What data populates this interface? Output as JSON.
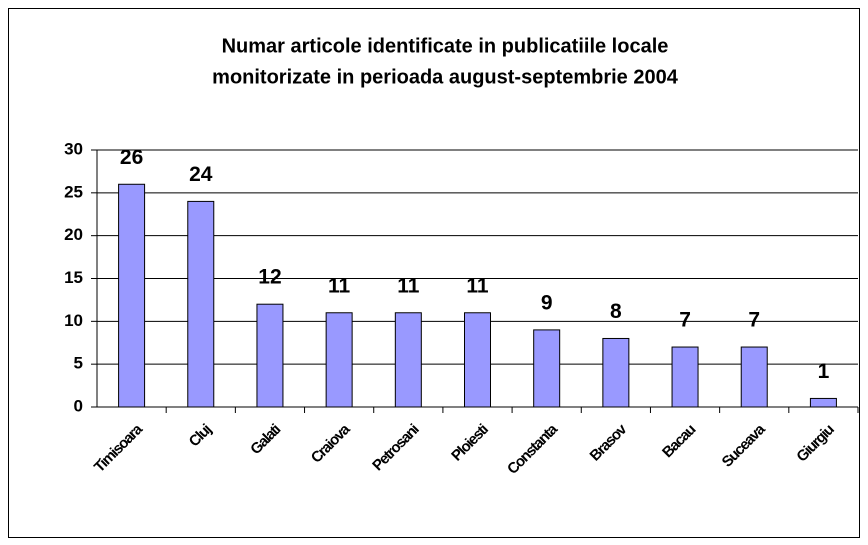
{
  "chart_data": {
    "type": "bar",
    "title": [
      "Numar articole identificate in publicatiile locale",
      "monitorizate in perioada august-septembrie 2004"
    ],
    "categories": [
      "Timisoara",
      "Cluj",
      "Galati",
      "Craiova",
      "Petrosani",
      "Ploiesti",
      "Constanta",
      "Brasov",
      "Bacau",
      "Suceava",
      "Giurgiu"
    ],
    "values": [
      26,
      24,
      12,
      11,
      11,
      11,
      9,
      8,
      7,
      7,
      1
    ],
    "color": "#9999ff",
    "ylim": [
      0,
      30
    ],
    "yticks": [
      0,
      5,
      10,
      15,
      20,
      25,
      30
    ],
    "grid": true
  }
}
